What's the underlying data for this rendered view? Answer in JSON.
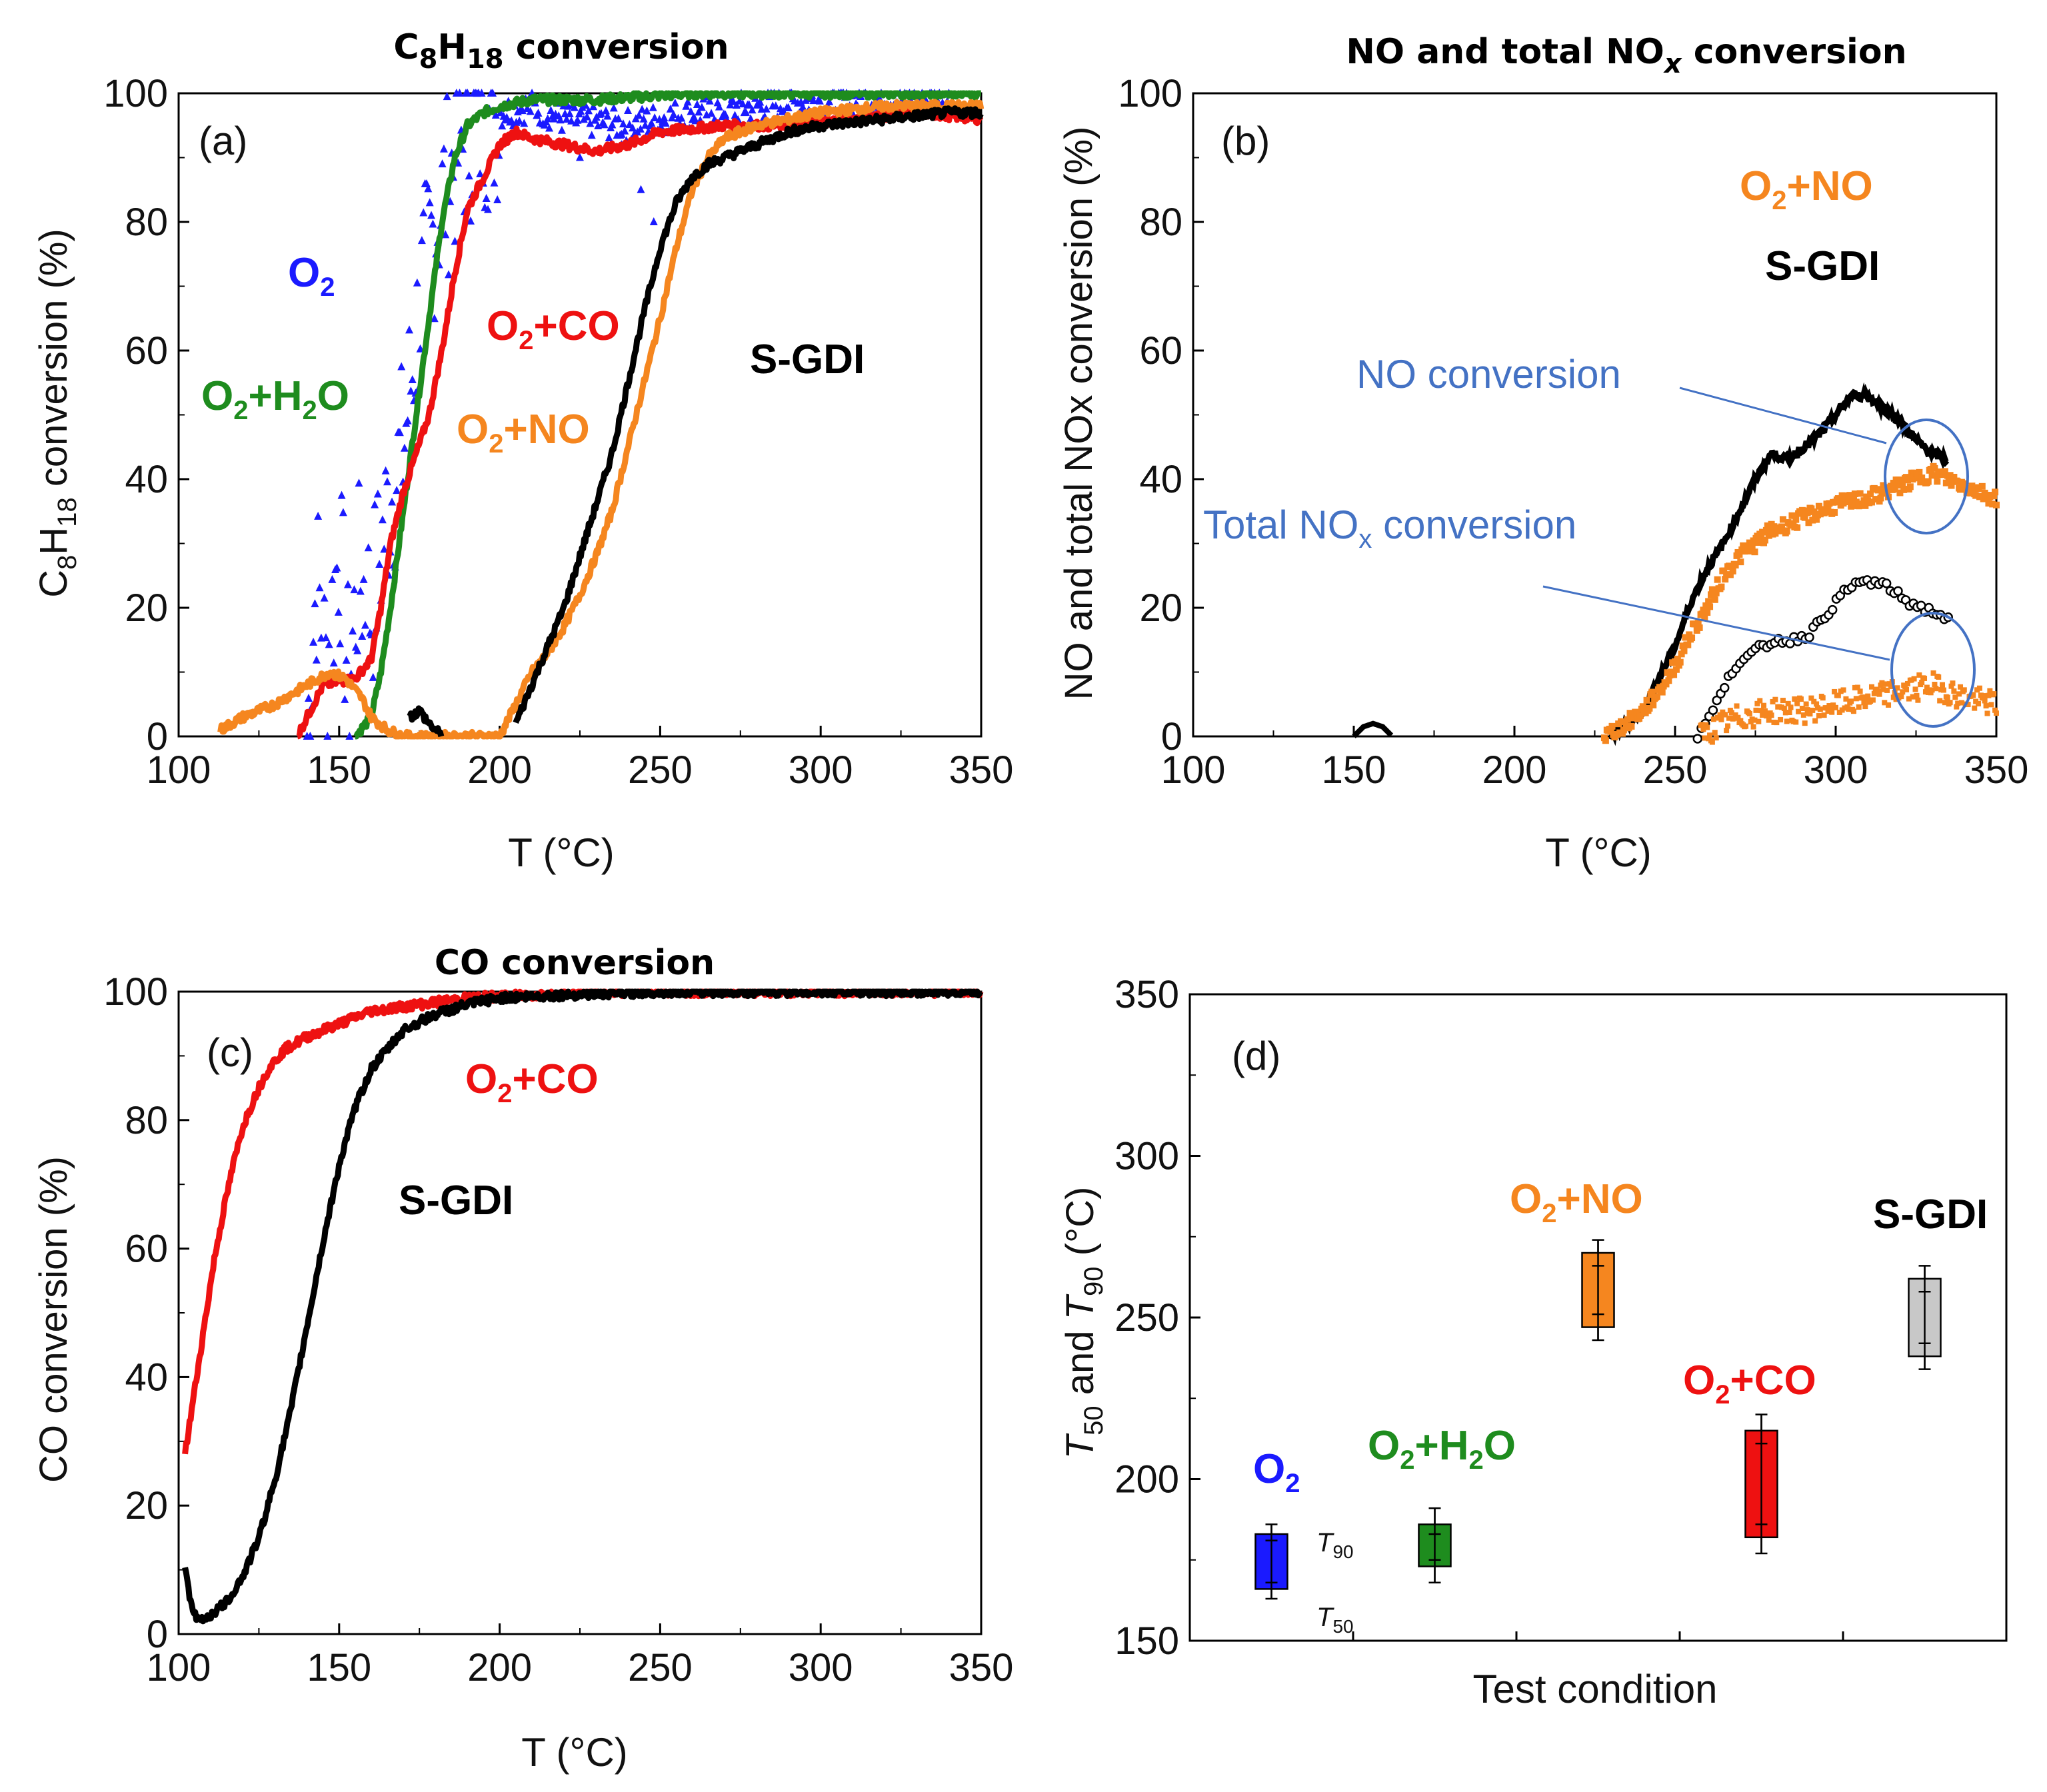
{
  "colors": {
    "O2": "#1a1aff",
    "O2_H2O": "#1e8c1e",
    "O2_CO": "#ee1111",
    "O2_NO": "#f5861f",
    "S_GDI": "#000000",
    "S_GDI_box": "#c8c8c8",
    "annotation": "#4472c4"
  },
  "chart_data": [
    {
      "id": "a",
      "type": "scatter",
      "title": "C8H18 conversion",
      "panel_label": "(a)",
      "xlabel": "T (°C)",
      "ylabel": "C8H18 conversion (%)",
      "xlim": [
        100,
        350
      ],
      "ylim": [
        0,
        100
      ],
      "xticks": [
        100,
        150,
        200,
        250,
        300,
        350
      ],
      "yticks": [
        0,
        20,
        40,
        60,
        80,
        100
      ],
      "series": [
        {
          "name": "O2",
          "color": "#1a1aff",
          "marker": "triangle",
          "scatter_noise": true,
          "x": [
            140,
            143,
            146,
            150,
            153,
            156,
            160,
            165,
            170,
            173,
            176,
            180,
            185,
            190,
            195,
            200,
            210,
            220,
            240,
            260,
            280,
            300,
            320,
            340
          ],
          "y": [
            0,
            25,
            10,
            30,
            8,
            25,
            20,
            35,
            45,
            58,
            70,
            80,
            88,
            94,
            96,
            97,
            98,
            96,
            95,
            97,
            98,
            99,
            99,
            99
          ]
        },
        {
          "name": "O2+H2O",
          "color": "#1e8c1e",
          "x": [
            155,
            160,
            163,
            166,
            170,
            174,
            178,
            182,
            186,
            190,
            195,
            200,
            210,
            230,
            260,
            300,
            350
          ],
          "y": [
            0,
            3,
            10,
            20,
            35,
            50,
            65,
            80,
            90,
            95,
            97,
            98,
            99,
            99,
            100,
            100,
            100
          ]
        },
        {
          "name": "O2+CO",
          "color": "#ee1111",
          "x": [
            137,
            145,
            155,
            160,
            163,
            166,
            170,
            174,
            178,
            182,
            186,
            190,
            195,
            200,
            205,
            210,
            220,
            230,
            240,
            250,
            270,
            290,
            310,
            330,
            350
          ],
          "y": [
            0,
            8,
            9,
            12,
            20,
            30,
            38,
            44,
            50,
            60,
            72,
            82,
            87,
            92,
            94,
            93,
            92,
            91,
            92,
            94,
            95,
            95,
            96,
            97,
            96
          ]
        },
        {
          "name": "O2+NO",
          "color": "#f5861f",
          "x": [
            113,
            120,
            130,
            140,
            147,
            152,
            157,
            160,
            165,
            170,
            180,
            190,
            200,
            205,
            210,
            215,
            220,
            225,
            230,
            235,
            240,
            245,
            250,
            255,
            260,
            265,
            270,
            280,
            290,
            300,
            320,
            350
          ],
          "y": [
            1,
            3,
            5,
            8,
            10,
            9,
            6,
            3,
            1,
            0,
            0,
            0,
            0,
            5,
            10,
            13,
            17,
            22,
            28,
            35,
            45,
            55,
            65,
            76,
            85,
            90,
            93,
            95,
            96,
            97,
            98,
            98
          ]
        },
        {
          "name": "S-GDI",
          "color": "#000000",
          "x": [
            205,
            210,
            215,
            220,
            225,
            230,
            235,
            240,
            245,
            250,
            255,
            260,
            265,
            270,
            280,
            290,
            300,
            320,
            340,
            350
          ],
          "y": [
            2,
            8,
            14,
            20,
            28,
            36,
            44,
            55,
            66,
            76,
            83,
            87,
            89,
            90,
            92,
            94,
            95,
            96,
            97,
            97
          ]
        },
        {
          "name": "S-GDI-low",
          "color": "#000000",
          "x": [
            172,
            175,
            178,
            182
          ],
          "y": [
            3,
            4,
            2,
            0
          ]
        }
      ],
      "labels": [
        "O2",
        "O2+H2O",
        "O2+CO",
        "O2+NO",
        "S-GDI"
      ]
    },
    {
      "id": "b",
      "type": "scatter",
      "title": "NO and total NOx conversion",
      "panel_label": "(b)",
      "xlabel": "T (°C)",
      "ylabel": "NO and total NOx conversion (%)",
      "xlim": [
        100,
        350
      ],
      "ylim": [
        0,
        100
      ],
      "xticks": [
        100,
        150,
        200,
        250,
        300,
        350
      ],
      "yticks": [
        0,
        20,
        40,
        60,
        80,
        100
      ],
      "series": [
        {
          "name": "S-GDI NO",
          "color": "#000000",
          "x": [
            150,
            153,
            156,
            159,
            162,
            230,
            240,
            250,
            255,
            260,
            265,
            270,
            275,
            280,
            285,
            290,
            295,
            300,
            305,
            310,
            315,
            320,
            325,
            330,
            335
          ],
          "y": [
            0,
            1.5,
            2,
            1.5,
            0,
            0,
            4,
            14,
            21,
            26,
            30,
            35,
            40,
            44,
            43,
            45,
            47,
            50,
            53,
            53,
            51,
            49,
            46,
            44,
            43
          ]
        },
        {
          "name": "O2+NO NO",
          "color": "#f5861f",
          "x": [
            228,
            235,
            240,
            245,
            250,
            255,
            260,
            265,
            270,
            275,
            280,
            290,
            300,
            310,
            320,
            330,
            340,
            350
          ],
          "y": [
            0,
            2,
            4,
            7,
            11,
            16,
            20,
            25,
            28,
            30,
            32,
            34,
            36,
            37,
            39,
            41,
            39,
            37
          ]
        },
        {
          "name": "S-GDI total NOx",
          "color": "#000000",
          "marker": "open-circle",
          "x": [
            257,
            262,
            267,
            272,
            277,
            282,
            287,
            292,
            297,
            302,
            307,
            312,
            317,
            322,
            327,
            332,
            336
          ],
          "y": [
            0,
            4,
            10,
            12,
            14,
            15,
            15,
            16,
            19,
            22,
            24,
            24,
            23,
            21,
            20,
            19,
            18
          ]
        },
        {
          "name": "O2+NO total NOx",
          "color": "#f5861f",
          "x": [
            258,
            265,
            270,
            280,
            290,
            300,
            310,
            320,
            330,
            340,
            350
          ],
          "y": [
            0,
            2,
            3,
            4,
            4,
            5,
            6,
            7,
            8,
            6,
            5
          ]
        }
      ],
      "labels": [
        "O2+NO",
        "S-GDI"
      ],
      "annotations": [
        "NO conversion",
        "Total NOx conversion"
      ]
    },
    {
      "id": "c",
      "type": "scatter",
      "title": "CO conversion",
      "panel_label": "(c)",
      "xlabel": "T (°C)",
      "ylabel": "CO conversion (%)",
      "xlim": [
        100,
        350
      ],
      "ylim": [
        0,
        100
      ],
      "xticks": [
        100,
        150,
        200,
        250,
        300,
        350
      ],
      "yticks": [
        0,
        20,
        40,
        60,
        80,
        100
      ],
      "series": [
        {
          "name": "O2+CO",
          "color": "#ee1111",
          "x": [
            102,
            105,
            108,
            111,
            114,
            117,
            120,
            124,
            128,
            133,
            140,
            150,
            160,
            175,
            190,
            210,
            230,
            260,
            300,
            350
          ],
          "y": [
            28,
            38,
            48,
            58,
            66,
            73,
            79,
            84,
            88,
            91,
            93,
            95,
            97,
            98,
            99,
            99.5,
            100,
            100,
            100,
            100
          ]
        },
        {
          "name": "S-GDI",
          "color": "#000000",
          "x": [
            102,
            104,
            106,
            110,
            115,
            120,
            125,
            130,
            135,
            140,
            145,
            150,
            155,
            160,
            165,
            170,
            180,
            190,
            200,
            220,
            250,
            300,
            350
          ],
          "y": [
            11,
            4,
            2,
            3,
            5,
            9,
            15,
            24,
            35,
            48,
            61,
            73,
            82,
            88,
            91,
            94,
            96.5,
            98,
            99,
            99.5,
            100,
            100,
            100
          ]
        }
      ],
      "labels": [
        "O2+CO",
        "S-GDI"
      ]
    },
    {
      "id": "d",
      "type": "box",
      "panel_label": "(d)",
      "xlabel": "Test condition",
      "ylabel": "T50 and T90 (°C)",
      "ylim": [
        150,
        350
      ],
      "yticks": [
        150,
        200,
        250,
        300,
        350
      ],
      "boxes": [
        {
          "name": "O2",
          "color": "#1a1aff",
          "t50": 166,
          "t90": 183,
          "err_low": 163,
          "err_high": 186,
          "inner_low": 168,
          "inner_high": 181
        },
        {
          "name": "O2+H2O",
          "color": "#1e8c1e",
          "t50": 173,
          "t90": 186,
          "err_low": 168,
          "err_high": 191,
          "inner_low": 175,
          "inner_high": 183
        },
        {
          "name": "O2+NO",
          "color": "#f5861f",
          "t50": 247,
          "t90": 270,
          "err_low": 243,
          "err_high": 274,
          "inner_low": 251,
          "inner_high": 266
        },
        {
          "name": "O2+CO",
          "color": "#ee1111",
          "t50": 182,
          "t90": 215,
          "err_low": 177,
          "err_high": 220,
          "inner_low": 186,
          "inner_high": 211
        },
        {
          "name": "S-GDI",
          "color": "#c8c8c8",
          "t50": 238,
          "t90": 262,
          "err_low": 234,
          "err_high": 266,
          "inner_low": 242,
          "inner_high": 258
        }
      ],
      "marker_labels": {
        "upper": "T90",
        "lower": "T50"
      }
    }
  ]
}
